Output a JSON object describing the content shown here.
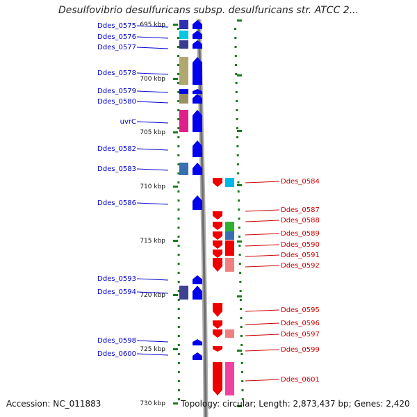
{
  "title": "Desulfovibrio desulfuricans subsp. desulfuricans str. ATCC 2...",
  "accession": "Accession: NC_011883",
  "topology": "Topology: circular; Length: 2,873,437 bp; Genes: 2,420",
  "ticks": [
    "695 kbp",
    "700 kbp",
    "705 kbp",
    "710 kbp",
    "715 kbp",
    "720 kbp",
    "725 kbp",
    "730 kbp"
  ],
  "left_genes": [
    {
      "label": "Ddes_0575",
      "color": "#2f2fb0"
    },
    {
      "label": "Ddes_0576",
      "color": "#00c8e0"
    },
    {
      "label": "Ddes_0577",
      "color": "#3a3a90"
    },
    {
      "label": "Ddes_0578",
      "color": "#b0a870"
    },
    {
      "label": "Ddes_0579",
      "color": "#0000ee"
    },
    {
      "label": "Ddes_0580",
      "color": "#9a9060"
    },
    {
      "label": "uvrC",
      "color": "#e0208a"
    },
    {
      "label": "Ddes_0582",
      "color": "#0000ee"
    },
    {
      "label": "Ddes_0583",
      "color": "#3a70b0"
    },
    {
      "label": "Ddes_0586",
      "color": "#0000ee"
    },
    {
      "label": "Ddes_0593",
      "color": "#0000ee"
    },
    {
      "label": "Ddes_0594",
      "color": "#404090"
    },
    {
      "label": "Ddes_0598",
      "color": "#0000ee"
    },
    {
      "label": "Ddes_0600",
      "color": "#0000ee"
    }
  ],
  "right_genes": [
    {
      "label": "Ddes_0584",
      "color": "#00b8e8"
    },
    {
      "label": "Ddes_0587",
      "color": "#ee0000"
    },
    {
      "label": "Ddes_0588",
      "color": "#30b030"
    },
    {
      "label": "Ddes_0589",
      "color": "#3a70b0"
    },
    {
      "label": "Ddes_0590",
      "color": "#ee0000"
    },
    {
      "label": "Ddes_0591",
      "color": "#ee0000"
    },
    {
      "label": "Ddes_0592",
      "color": "#f08080"
    },
    {
      "label": "Ddes_0595",
      "color": "#ee0000"
    },
    {
      "label": "Ddes_0596",
      "color": "#ee0000"
    },
    {
      "label": "Ddes_0597",
      "color": "#f08080"
    },
    {
      "label": "Ddes_0599",
      "color": "#ee0000"
    },
    {
      "label": "Ddes_0601",
      "color": "#f040a0"
    }
  ]
}
